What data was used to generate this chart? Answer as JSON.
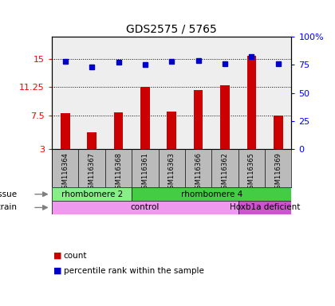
{
  "title": "GDS2575 / 5765",
  "samples": [
    "GSM116364",
    "GSM116367",
    "GSM116368",
    "GSM116361",
    "GSM116363",
    "GSM116366",
    "GSM116362",
    "GSM116365",
    "GSM116369"
  ],
  "counts": [
    7.8,
    5.2,
    7.9,
    11.25,
    8.0,
    10.9,
    11.5,
    15.5,
    7.5
  ],
  "percentiles": [
    78,
    73,
    77,
    75,
    78,
    79,
    76,
    82,
    76
  ],
  "ylim_left": [
    3,
    18
  ],
  "ylim_right": [
    0,
    100
  ],
  "yticks_left": [
    3,
    7.5,
    11.25,
    15
  ],
  "ytick_labels_left": [
    "3",
    "7.5",
    "11.25",
    "15"
  ],
  "yticks_right": [
    0,
    25,
    50,
    75,
    100
  ],
  "ytick_labels_right": [
    "0",
    "25",
    "50",
    "75",
    "100%"
  ],
  "bar_color": "#cc0000",
  "dot_color": "#0000cc",
  "tissue_groups": [
    {
      "label": "rhombomere 2",
      "start": 0,
      "end": 3,
      "color": "#88ee88"
    },
    {
      "label": "rhombomere 4",
      "start": 3,
      "end": 9,
      "color": "#44cc44"
    }
  ],
  "strain_groups": [
    {
      "label": "control",
      "start": 0,
      "end": 7,
      "color": "#ee99ee"
    },
    {
      "label": "Hoxb1a deficient",
      "start": 7,
      "end": 9,
      "color": "#cc55cc"
    }
  ],
  "background_color": "#ffffff",
  "plot_bg_color": "#eeeeee",
  "label_bg_color": "#bbbbbb"
}
